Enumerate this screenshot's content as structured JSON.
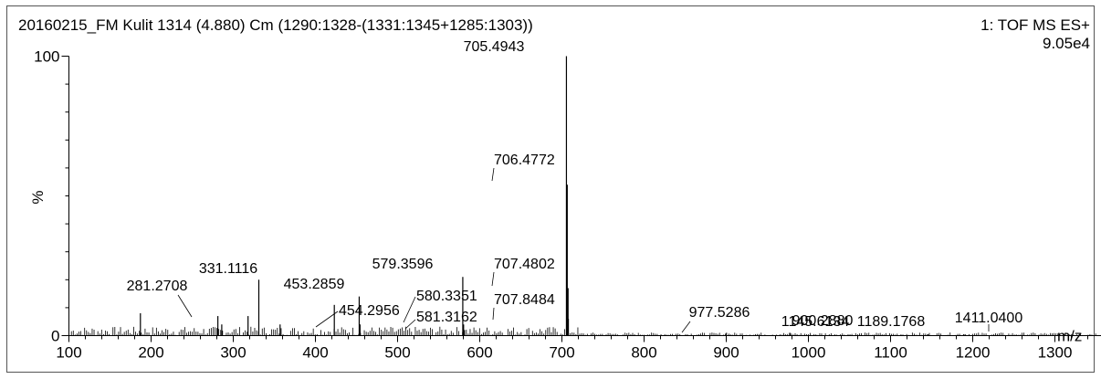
{
  "header": {
    "title": "20160215_FM Kulit 1314 (4.880) Cm (1290:1328-(1331:1345+1285:1303))",
    "mode": "1: TOF MS ES+",
    "intensity": "9.05e4"
  },
  "chart_data": {
    "type": "bar",
    "title": "20160215_FM Kulit 1314 (4.880) Cm (1290:1328-(1331:1345+1285:1303))",
    "xlabel": "m/z",
    "ylabel": "%",
    "xlim": [
      100,
      1500
    ],
    "ylim": [
      0,
      100
    ],
    "x_ticks": [
      100,
      200,
      300,
      400,
      500,
      600,
      700,
      800,
      900,
      1000,
      1100,
      1200,
      1300,
      1400
    ],
    "y_ticks": [
      0,
      100
    ],
    "grid": false,
    "series": [
      {
        "peaks": [
          {
            "mz": 187.0,
            "pct": 8
          },
          {
            "mz": 281.2708,
            "pct": 7,
            "label": "281.2708"
          },
          {
            "mz": 286.0,
            "pct": 4
          },
          {
            "mz": 318.0,
            "pct": 7
          },
          {
            "mz": 331.1116,
            "pct": 20,
            "label": "331.1116"
          },
          {
            "mz": 357.0,
            "pct": 4
          },
          {
            "mz": 423.0,
            "pct": 11
          },
          {
            "mz": 453.2859,
            "pct": 14,
            "label": "453.2859"
          },
          {
            "mz": 454.2956,
            "pct": 4,
            "label": "454.2956"
          },
          {
            "mz": 579.3596,
            "pct": 21,
            "label": "579.3596"
          },
          {
            "mz": 580.3351,
            "pct": 4,
            "label": "580.3351"
          },
          {
            "mz": 581.3162,
            "pct": 2,
            "label": "581.3162"
          },
          {
            "mz": 705.4943,
            "pct": 100,
            "label": "705.4943"
          },
          {
            "mz": 706.4772,
            "pct": 54,
            "label": "706.4772"
          },
          {
            "mz": 707.4802,
            "pct": 17,
            "label": "707.4802"
          },
          {
            "mz": 707.8484,
            "pct": 6,
            "label": "707.8484"
          },
          {
            "mz": 900.288,
            "pct": 1,
            "label": "900.2880"
          },
          {
            "mz": 977.5286,
            "pct": 1,
            "label": "977.5286"
          },
          {
            "mz": 1145.6134,
            "pct": 0.5,
            "label": "1145.6134"
          },
          {
            "mz": 1189.1768,
            "pct": 0.5,
            "label": "1189.1768"
          },
          {
            "mz": 1411.04,
            "pct": 2,
            "label": "1411.0400"
          }
        ]
      }
    ]
  }
}
